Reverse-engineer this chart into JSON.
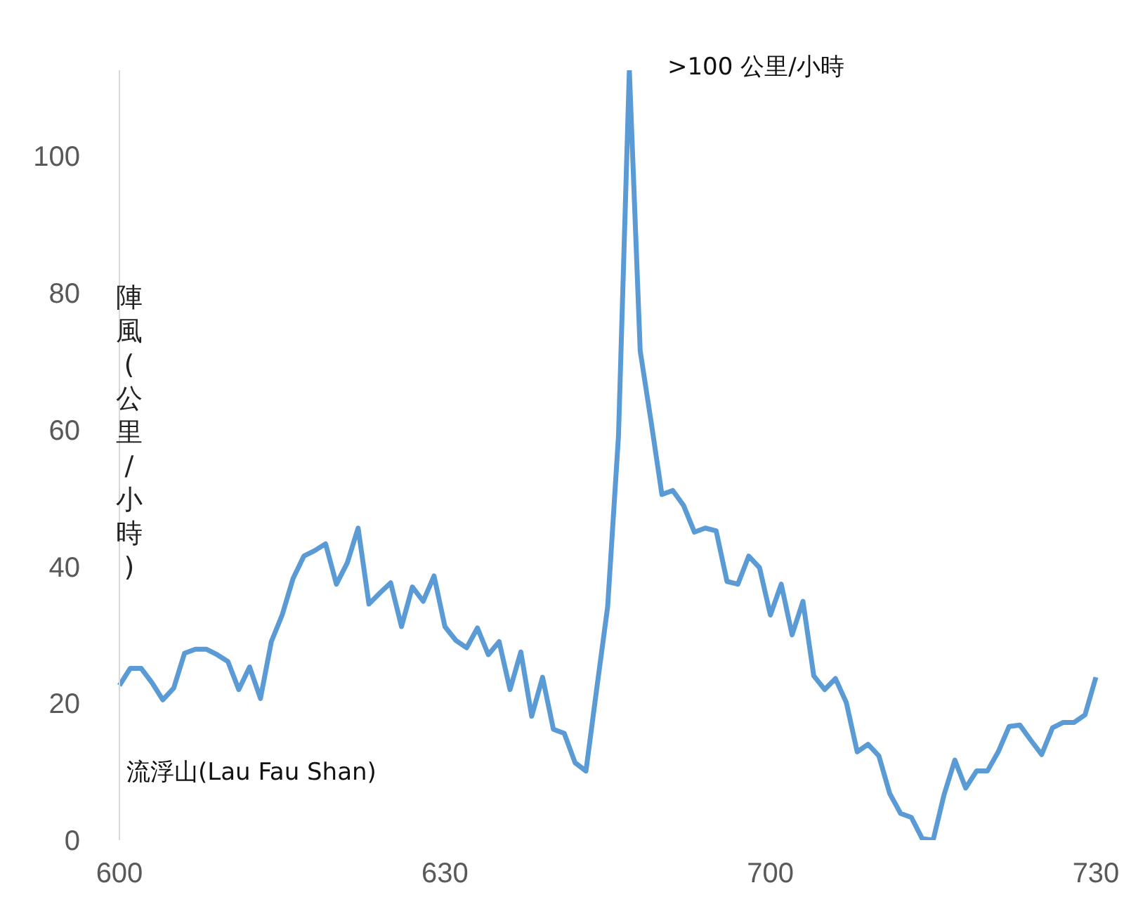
{
  "chart_data": {
    "type": "line",
    "ylabel": "陣風(公里/小時)",
    "annotations": [
      ">100 公里/小時",
      "流浮山(Lau Fau Shan)"
    ],
    "categories": [
      "600",
      null,
      null,
      null,
      null,
      null,
      null,
      null,
      null,
      null,
      null,
      null,
      null,
      null,
      null,
      null,
      null,
      null,
      null,
      null,
      null,
      null,
      null,
      null,
      null,
      null,
      null,
      null,
      null,
      null,
      "630",
      null,
      null,
      null,
      null,
      null,
      null,
      null,
      null,
      null,
      null,
      null,
      null,
      null,
      null,
      null,
      null,
      null,
      null,
      null,
      null,
      null,
      null,
      null,
      null,
      null,
      null,
      null,
      null,
      null,
      "700",
      null,
      null,
      null,
      null,
      null,
      null,
      null,
      null,
      null,
      null,
      null,
      null,
      null,
      null,
      null,
      null,
      null,
      null,
      null,
      null,
      null,
      null,
      null,
      null,
      null,
      null,
      null,
      null,
      null,
      "730"
    ],
    "series": [
      {
        "color": "#5b9bd5",
        "values": [
          22.6,
          25.1,
          25.1,
          23,
          20.5,
          22.2,
          27.3,
          27.9,
          27.9,
          27.1,
          26.1,
          22,
          25.3,
          20.7,
          29,
          32.9,
          38.2,
          41.5,
          42.3,
          43.3,
          37.4,
          40.5,
          45.6,
          34.5,
          36.1,
          37.6,
          31.2,
          37,
          34.9,
          38.6,
          31.2,
          29.2,
          28.1,
          31,
          27.1,
          29,
          22,
          27.5,
          18.1,
          23.8,
          16.2,
          15.6,
          11.3,
          10.1,
          22.2,
          34.1,
          59.1,
          112.5,
          71.5,
          61.2,
          50.5,
          51.1,
          48.9,
          45,
          45.6,
          45.2,
          37.8,
          37.4,
          41.5,
          39.8,
          32.9,
          37.4,
          30,
          34.9,
          24,
          22,
          23.6,
          20.1,
          12.9,
          14,
          12.3,
          6.8,
          3.9,
          3.3,
          0.2,
          0,
          6.6,
          11.7,
          7.6,
          10.1,
          10.1,
          12.9,
          16.6,
          16.8,
          14.6,
          12.5,
          16.4,
          17.2,
          17.2,
          18.3,
          23.8
        ]
      }
    ],
    "ylim": [
      0,
      112.5
    ],
    "yticks": [
      0,
      20,
      40,
      60,
      80,
      100
    ],
    "grid": false,
    "marker": "none",
    "line_style": "solid"
  }
}
